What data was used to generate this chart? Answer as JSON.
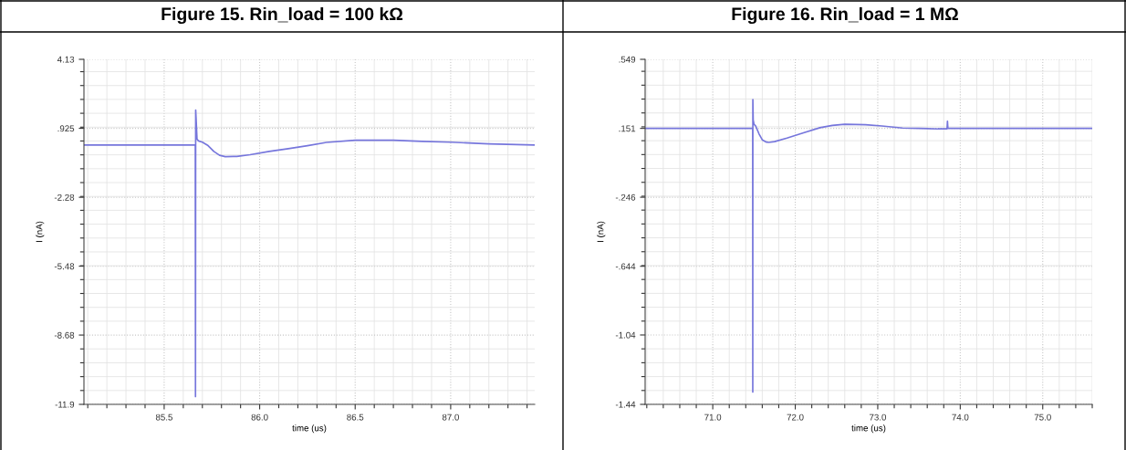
{
  "chart_data": [
    {
      "type": "line",
      "title": "Figure 15. Rin_load = 100 kΩ",
      "xlabel": "time (us)",
      "ylabel": "I (nA)",
      "x": [
        85.08,
        85.663,
        85.664,
        85.665,
        85.667,
        85.672,
        85.68,
        85.7,
        85.73,
        85.76,
        85.79,
        85.82,
        85.88,
        85.95,
        86.05,
        86.15,
        86.25,
        86.35,
        86.5,
        86.7,
        86.85,
        87.0,
        87.2,
        87.44
      ],
      "series": [
        {
          "color": "#7676dc",
          "values": [
            0.15,
            0.15,
            -11.54,
            1.77,
            1.41,
            0.42,
            0.34,
            0.28,
            0.12,
            -0.15,
            -0.33,
            -0.39,
            -0.38,
            -0.3,
            -0.15,
            -0.02,
            0.12,
            0.27,
            0.37,
            0.37,
            0.32,
            0.28,
            0.2,
            0.15
          ]
        }
      ],
      "xlim": [
        85.08,
        87.44
      ],
      "xticks": [
        {
          "value": 85.5,
          "label": "85.5"
        },
        {
          "value": 86.0,
          "label": "86.0"
        },
        {
          "value": 86.5,
          "label": "86.5"
        },
        {
          "value": 87.0,
          "label": "87.0"
        }
      ],
      "ylim": [
        -11.9,
        4.13
      ],
      "yticks": [
        {
          "value": 4.13,
          "label": "4.13"
        },
        {
          "value": 0.925,
          "label": ".925"
        },
        {
          "value": -2.28,
          "label": "-2.28"
        },
        {
          "value": -5.48,
          "label": "-5.48"
        },
        {
          "value": -8.68,
          "label": "-8.68"
        },
        {
          "value": -11.9,
          "label": "-11.9"
        }
      ],
      "grid": true
    },
    {
      "type": "line",
      "title": "Figure 16. Rin_load = 1 MΩ",
      "xlabel": "time (us)",
      "ylabel": "I (nA)",
      "x": [
        70.18,
        71.484,
        71.485,
        71.486,
        71.49,
        71.5,
        71.52,
        71.56,
        71.6,
        71.65,
        71.68,
        71.75,
        71.9,
        72.1,
        72.3,
        72.45,
        72.6,
        72.85,
        73.05,
        73.3,
        73.5,
        73.73,
        73.84,
        73.845,
        73.85,
        75.6
      ],
      "series": [
        {
          "color": "#7676dc",
          "values": [
            0.151,
            0.151,
            -1.369,
            0.317,
            0.2,
            0.175,
            0.165,
            0.12,
            0.085,
            0.072,
            0.07,
            0.075,
            0.095,
            0.125,
            0.155,
            0.168,
            0.175,
            0.172,
            0.165,
            0.153,
            0.151,
            0.148,
            0.148,
            0.192,
            0.151,
            0.151
          ]
        }
      ],
      "xlim": [
        70.18,
        75.6
      ],
      "xticks": [
        {
          "value": 71.0,
          "label": "71.0"
        },
        {
          "value": 72.0,
          "label": "72.0"
        },
        {
          "value": 73.0,
          "label": "73.0"
        },
        {
          "value": 74.0,
          "label": "74.0"
        },
        {
          "value": 75.0,
          "label": "75.0"
        }
      ],
      "ylim": [
        -1.44,
        0.549
      ],
      "yticks": [
        {
          "value": 0.549,
          "label": ".549"
        },
        {
          "value": 0.151,
          "label": ".151"
        },
        {
          "value": -0.246,
          "label": "-.246"
        },
        {
          "value": -0.644,
          "label": "-.644"
        },
        {
          "value": -1.04,
          "label": "-1.04"
        },
        {
          "value": -1.44,
          "label": "-1.44"
        }
      ],
      "grid": true
    }
  ]
}
